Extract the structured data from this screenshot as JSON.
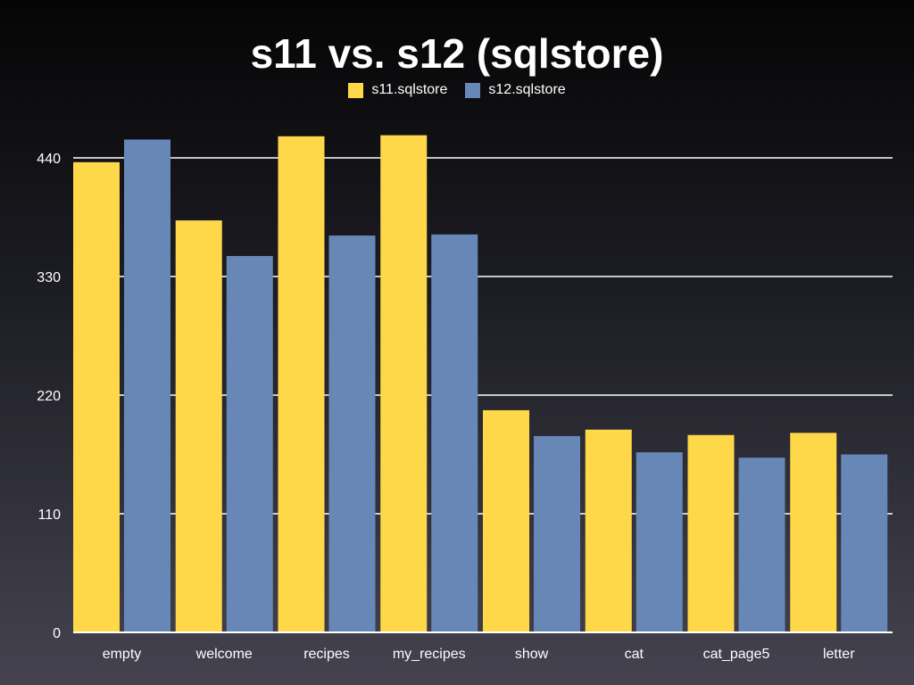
{
  "chart_data": {
    "type": "bar",
    "title": "s11 vs. s12 (sqlstore)",
    "xlabel": "",
    "ylabel": "",
    "categories": [
      "empty",
      "welcome",
      "recipes",
      "my_recipes",
      "show",
      "cat",
      "cat_page5",
      "letter"
    ],
    "series": [
      {
        "name": "s11.sqlstore",
        "color": "#ffd84a",
        "values": [
          436,
          382,
          460,
          461,
          206,
          188,
          183,
          185
        ]
      },
      {
        "name": "s12.sqlstore",
        "color": "#6787b7",
        "values": [
          457,
          349,
          368,
          369,
          182,
          167,
          162,
          165
        ]
      }
    ],
    "ylim": [
      0,
      440
    ],
    "yticks": [
      0,
      110,
      220,
      330,
      440
    ],
    "grid": true,
    "legend_position": "top-center"
  }
}
